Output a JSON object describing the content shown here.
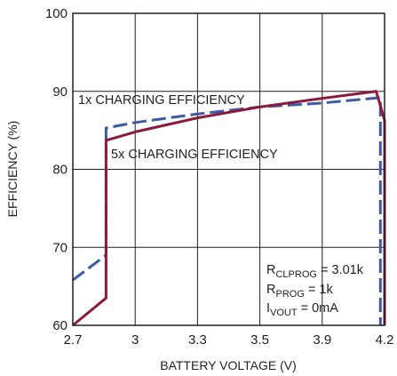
{
  "chart_data": {
    "type": "line",
    "xlabel": "BATTERY VOLTAGE (V)",
    "ylabel": "EFFICIENCY (%)",
    "ylim": [
      60,
      100
    ],
    "x_tick_labels": [
      "2.7",
      "3",
      "3.3",
      "3.5",
      "3.9",
      "4.2"
    ],
    "y_tick_labels": [
      "60",
      "70",
      "80",
      "90",
      "100"
    ],
    "grid": true,
    "legend": "none",
    "series": [
      {
        "name": "1x CHARGING EFFICIENCY",
        "color": "#3a5ba8",
        "style": "dashed",
        "x": [
          2.7,
          2.86,
          2.86,
          3.0,
          3.3,
          3.5,
          3.9,
          4.18,
          4.18
        ],
        "values": [
          65.8,
          69.0,
          85.3,
          86.0,
          87.1,
          88.0,
          88.5,
          89.2,
          60.0
        ]
      },
      {
        "name": "5x CHARGING EFFICIENCY",
        "color": "#8b1a3c",
        "style": "solid",
        "x": [
          2.7,
          2.86,
          2.86,
          3.0,
          3.3,
          3.5,
          3.9,
          4.16,
          4.2,
          4.2
        ],
        "values": [
          60.0,
          63.5,
          83.7,
          84.8,
          86.6,
          88.0,
          89.1,
          90.0,
          86.3,
          60.0
        ]
      }
    ],
    "annotations": {
      "rclprog": {
        "main": "R",
        "sub": "CLPROG",
        "rest": " = 3.01k"
      },
      "rprog": {
        "main": "R",
        "sub": "PROG",
        "rest": " = 1k"
      },
      "ivout": {
        "main": "I",
        "sub": "VOUT",
        "rest": " = 0mA"
      }
    }
  }
}
